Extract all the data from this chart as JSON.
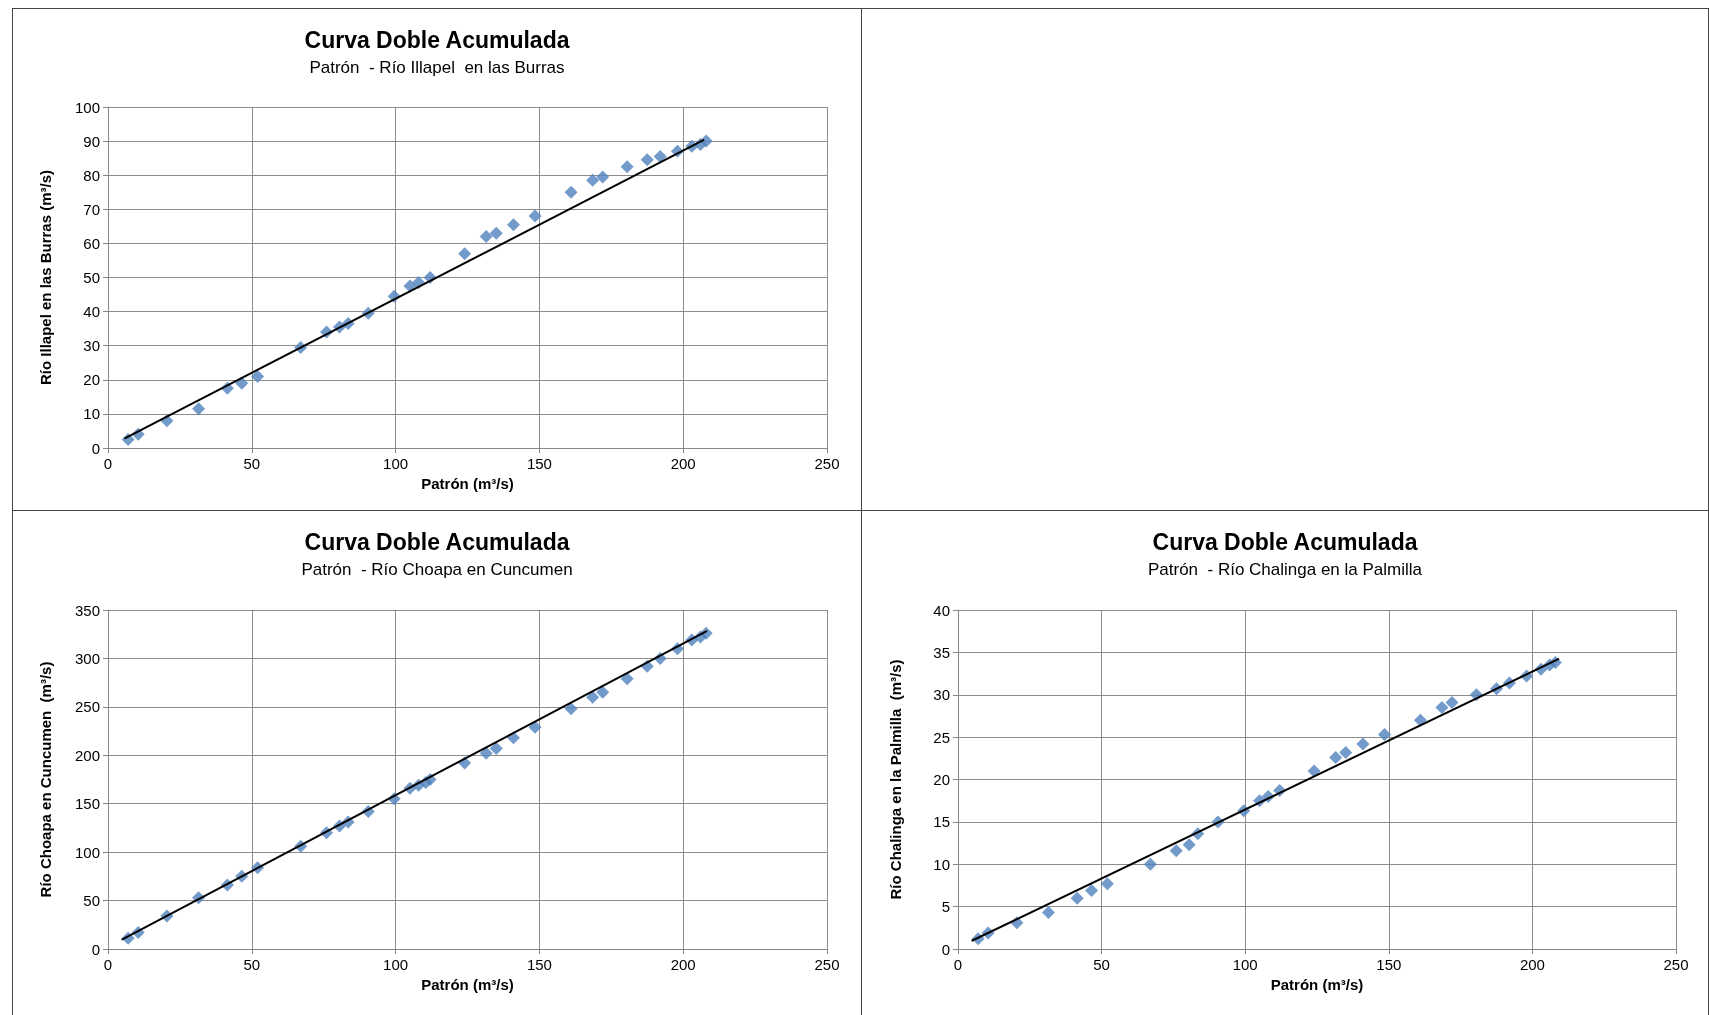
{
  "chart_data": [
    {
      "type": "scatter",
      "title": "Curva Doble Acumulada",
      "subtitle": "Patrón  - Río Illapel  en las Burras",
      "xlabel": "Patrón (m³/s)",
      "ylabel": "Río Illapel en las Burras (m³/s)",
      "xlim": [
        0,
        250
      ],
      "xticks": [
        0,
        50,
        100,
        150,
        200,
        250
      ],
      "ylim": [
        0,
        100
      ],
      "yticks": [
        0,
        10,
        20,
        30,
        40,
        50,
        60,
        70,
        80,
        90,
        100
      ],
      "grid": true,
      "marker": "diamond",
      "x": [
        7,
        10.5,
        20.5,
        31.5,
        41.5,
        46.5,
        52,
        67,
        76,
        80.5,
        83.5,
        90.5,
        99.5,
        105,
        108,
        110.5,
        112,
        124,
        131.5,
        135,
        141,
        148.5,
        161,
        168.5,
        172,
        180.5,
        187.5,
        192,
        198,
        203,
        206,
        208
      ],
      "series": [
        {
          "color": "#4f81bd",
          "values": [
            2.5,
            4,
            8,
            11.5,
            17.5,
            19,
            21,
            29.5,
            34,
            35.5,
            36.5,
            39.5,
            44.5,
            47.5,
            48.5,
            null,
            50,
            57,
            62,
            63,
            65.5,
            68,
            75,
            78.5,
            79.5,
            82.5,
            84.5,
            85.5,
            87,
            88.5,
            89,
            90
          ]
        },
        {
          "type": "line",
          "color": "#000000",
          "marker": "none",
          "x": [
            6,
            207
          ],
          "values": [
            2.9,
            90.3
          ]
        }
      ]
    },
    {
      "type": "scatter",
      "title": "Curva Doble Acumulada",
      "subtitle": "Patrón  - Río Choapa en Cuncumen",
      "xlabel": "Patrón (m³/s)",
      "ylabel": "Río Choapa en Cuncumen  (m³/s)",
      "xlim": [
        0,
        250
      ],
      "xticks": [
        0,
        50,
        100,
        150,
        200,
        250
      ],
      "ylim": [
        0,
        350
      ],
      "yticks": [
        0,
        50,
        100,
        150,
        200,
        250,
        300,
        350
      ],
      "grid": true,
      "marker": "diamond",
      "x": [
        7,
        10.5,
        20.5,
        31.5,
        41.5,
        46.5,
        52,
        67,
        76,
        80.5,
        83.5,
        90.5,
        99.5,
        105,
        108,
        110.5,
        112,
        124,
        131.5,
        135,
        141,
        148.5,
        161,
        168.5,
        172,
        180.5,
        187.5,
        192,
        198,
        203,
        206,
        208
      ],
      "series": [
        {
          "color": "#4f81bd",
          "values": [
            11,
            17,
            34,
            53,
            66,
            75,
            84,
            106,
            120,
            127,
            131,
            142,
            155,
            166,
            169,
            172,
            175,
            192,
            202,
            207,
            218,
            229,
            248,
            260,
            265,
            279,
            292,
            300,
            310,
            319,
            322,
            326
          ]
        },
        {
          "type": "line",
          "color": "#000000",
          "marker": "none",
          "x": [
            5,
            208
          ],
          "values": [
            10,
            328
          ]
        }
      ]
    },
    {
      "type": "scatter",
      "title": "Curva Doble Acumulada",
      "subtitle": "Patrón  - Río Chalinga en la Palmilla",
      "xlabel": "Patrón (m³/s)",
      "ylabel": "Río Chalinga en la Palmilla  (m³/s)",
      "xlim": [
        0,
        250
      ],
      "xticks": [
        0,
        50,
        100,
        150,
        200,
        250
      ],
      "ylim": [
        0,
        40
      ],
      "yticks": [
        0,
        5,
        10,
        15,
        20,
        25,
        30,
        35,
        40
      ],
      "grid": true,
      "marker": "diamond",
      "x": [
        7,
        10.5,
        20.5,
        31.5,
        41.5,
        46.5,
        52,
        67,
        76,
        80.5,
        83.5,
        90.5,
        99.5,
        105,
        108,
        110.5,
        112,
        124,
        131.5,
        135,
        141,
        148.5,
        161,
        168.5,
        172,
        180.5,
        187.5,
        192,
        198,
        203,
        206,
        208
      ],
      "series": [
        {
          "color": "#4f81bd",
          "values": [
            1.2,
            1.9,
            3.1,
            4.3,
            6,
            6.9,
            7.7,
            10,
            11.6,
            12.3,
            13.6,
            15,
            16.3,
            17.5,
            18,
            null,
            18.7,
            21,
            22.6,
            23.2,
            24.2,
            25.3,
            27,
            28.5,
            29.1,
            30,
            30.7,
            31.4,
            32.2,
            33,
            33.5,
            33.8
          ]
        },
        {
          "type": "line",
          "color": "#000000",
          "marker": "none",
          "x": [
            5,
            209
          ],
          "values": [
            1,
            34.2
          ]
        }
      ]
    }
  ]
}
